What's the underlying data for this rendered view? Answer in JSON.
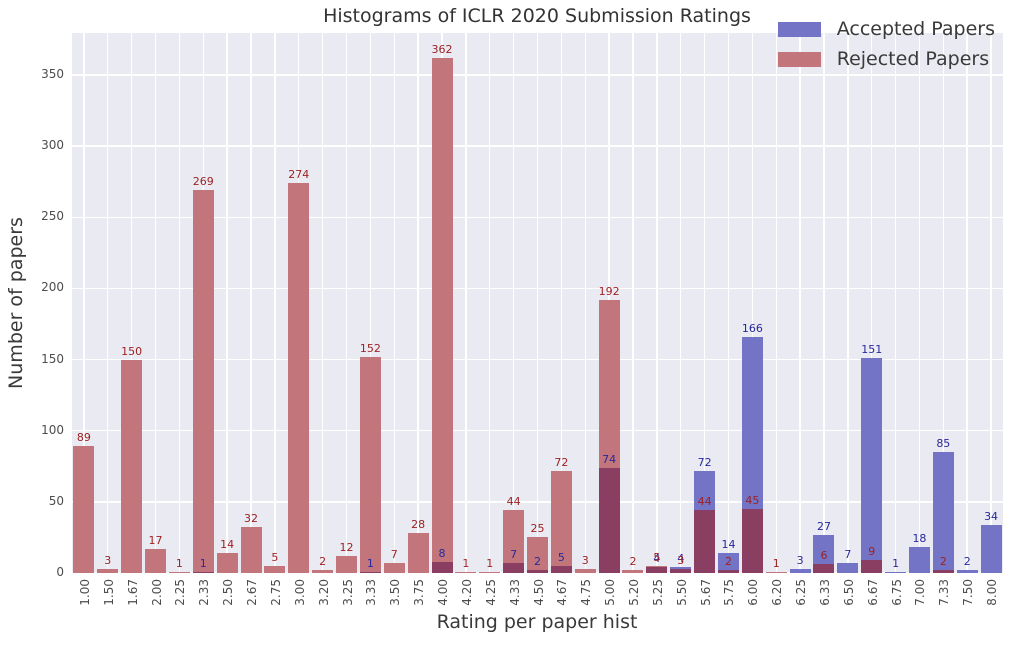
{
  "figure": {
    "title": "Histograms of ICLR 2020 Submission Ratings",
    "xlabel": "Rating per paper hist",
    "ylabel": "Number of papers"
  },
  "legend": {
    "items": [
      {
        "label": "Accepted Papers",
        "color": "#7374c5"
      },
      {
        "label": "Rejected Papers",
        "color": "#c2767b"
      }
    ]
  },
  "chart_data": {
    "type": "bar",
    "title": "Histograms of ICLR 2020 Submission Ratings",
    "xlabel": "Rating per paper hist",
    "ylabel": "Number of papers",
    "categories": [
      "1.00",
      "1.50",
      "1.67",
      "2.00",
      "2.25",
      "2.33",
      "2.50",
      "2.67",
      "2.75",
      "3.00",
      "3.20",
      "3.25",
      "3.33",
      "3.50",
      "3.75",
      "4.00",
      "4.20",
      "4.25",
      "4.33",
      "4.50",
      "4.67",
      "4.75",
      "5.00",
      "5.20",
      "5.25",
      "5.50",
      "5.67",
      "5.75",
      "6.00",
      "6.20",
      "6.25",
      "6.33",
      "6.50",
      "6.67",
      "6.75",
      "7.00",
      "7.33",
      "7.50",
      "8.00"
    ],
    "series": [
      {
        "name": "Accepted Papers",
        "color": "#7374c5",
        "label_color": "#28289e",
        "values": [
          0,
          0,
          0,
          0,
          0,
          1,
          0,
          0,
          0,
          0,
          0,
          0,
          1,
          0,
          0,
          8,
          0,
          0,
          7,
          2,
          5,
          0,
          74,
          0,
          4,
          4,
          72,
          14,
          166,
          0,
          3,
          27,
          7,
          151,
          1,
          18,
          85,
          2,
          34
        ]
      },
      {
        "name": "Rejected Papers",
        "color": "#c2767b",
        "label_color": "#9e2123",
        "values": [
          89,
          3,
          150,
          17,
          1,
          269,
          14,
          32,
          5,
          274,
          2,
          12,
          152,
          7,
          28,
          362,
          1,
          1,
          44,
          25,
          72,
          3,
          192,
          2,
          5,
          3,
          44,
          2,
          45,
          1,
          0,
          6,
          0,
          9,
          0,
          0,
          2,
          0,
          0
        ]
      }
    ],
    "overlap_color": "#8a3f62",
    "yticks": [
      0,
      50,
      100,
      150,
      200,
      250,
      300,
      350
    ],
    "ylim": [
      0,
      379.5
    ],
    "grid": true,
    "legend_position": "upper right",
    "plot_background": "#eaeaf2",
    "grid_color": "#ffffff"
  }
}
